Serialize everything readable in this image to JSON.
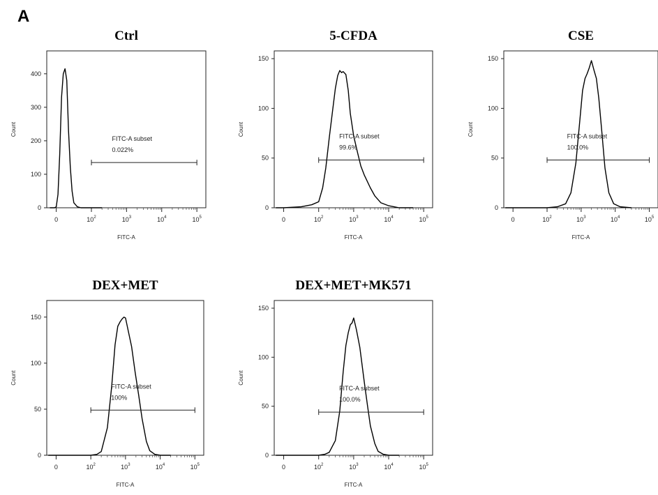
{
  "figure": {
    "panel_letter": "A"
  },
  "chart_data": [
    {
      "type": "histogram",
      "title": "Ctrl",
      "xlabel": "FITC-A",
      "ylabel": "Count",
      "xscale": "biexponential",
      "x_ticks": [
        {
          "v": 0,
          "base": "0",
          "exp": ""
        },
        {
          "v": 100,
          "base": "10",
          "exp": "2"
        },
        {
          "v": 1000,
          "base": "10",
          "exp": "3"
        },
        {
          "v": 10000,
          "base": "10",
          "exp": "4"
        },
        {
          "v": 100000,
          "base": "10",
          "exp": "5"
        }
      ],
      "ylim": [
        0,
        460
      ],
      "y_ticks": [
        0,
        100,
        200,
        300,
        400
      ],
      "gate": {
        "name": "FITC-A subset",
        "percent": "0.022%",
        "x_range": [
          100,
          100000
        ],
        "y": 135
      },
      "x": [
        -40,
        -10,
        0,
        5,
        10,
        15,
        20,
        25,
        30,
        35,
        40,
        45,
        50,
        60,
        70,
        80,
        100,
        200
      ],
      "y": [
        0,
        0,
        3,
        40,
        160,
        330,
        400,
        415,
        380,
        230,
        120,
        50,
        15,
        3,
        0,
        0,
        0,
        0
      ]
    },
    {
      "type": "histogram",
      "title": "5-CFDA",
      "xlabel": "FITC-A",
      "ylabel": "Count",
      "xscale": "biexponential",
      "x_ticks": [
        {
          "v": 0,
          "base": "0",
          "exp": ""
        },
        {
          "v": 100,
          "base": "10",
          "exp": "2"
        },
        {
          "v": 1000,
          "base": "10",
          "exp": "3"
        },
        {
          "v": 10000,
          "base": "10",
          "exp": "4"
        },
        {
          "v": 100000,
          "base": "10",
          "exp": "5"
        }
      ],
      "ylim": [
        0,
        155
      ],
      "y_ticks": [
        0,
        50,
        100,
        150
      ],
      "gate": {
        "name": "FITC-A subset",
        "percent": "99.6%",
        "x_range": [
          100,
          100000
        ],
        "y": 48
      },
      "x": [
        -50,
        0,
        50,
        80,
        100,
        130,
        160,
        200,
        250,
        300,
        350,
        400,
        450,
        500,
        600,
        700,
        800,
        1000,
        1300,
        1600,
        2000,
        3000,
        4000,
        6000,
        10000,
        20000,
        50000
      ],
      "y": [
        0,
        0,
        1,
        3,
        6,
        20,
        40,
        70,
        98,
        120,
        133,
        138,
        136,
        137,
        134,
        118,
        95,
        72,
        55,
        42,
        33,
        20,
        12,
        5,
        2,
        0,
        0
      ]
    },
    {
      "type": "histogram",
      "title": "CSE",
      "xlabel": "FITC-A",
      "ylabel": "Count",
      "xscale": "biexponential",
      "x_ticks": [
        {
          "v": 0,
          "base": "0",
          "exp": ""
        },
        {
          "v": 100,
          "base": "10",
          "exp": "2"
        },
        {
          "v": 1000,
          "base": "10",
          "exp": "3"
        },
        {
          "v": 10000,
          "base": "10",
          "exp": "4"
        },
        {
          "v": 100000,
          "base": "10",
          "exp": "5"
        }
      ],
      "ylim": [
        0,
        155
      ],
      "y_ticks": [
        0,
        50,
        100,
        150
      ],
      "gate": {
        "name": "FITC-A subset",
        "percent": "100.0%",
        "x_range": [
          100,
          100000
        ],
        "y": 48
      },
      "x": [
        -50,
        0,
        100,
        200,
        350,
        500,
        700,
        900,
        1100,
        1300,
        1500,
        1700,
        2000,
        2400,
        2800,
        3300,
        4000,
        5000,
        6500,
        9000,
        14000,
        30000
      ],
      "y": [
        0,
        0,
        0,
        1,
        4,
        15,
        45,
        85,
        118,
        130,
        135,
        140,
        148,
        138,
        130,
        110,
        78,
        40,
        15,
        4,
        1,
        0
      ]
    },
    {
      "type": "histogram",
      "title": "DEX+MET",
      "xlabel": "FITC-A",
      "ylabel": "Count",
      "xscale": "biexponential",
      "x_ticks": [
        {
          "v": 0,
          "base": "0",
          "exp": ""
        },
        {
          "v": 100,
          "base": "10",
          "exp": "2"
        },
        {
          "v": 1000,
          "base": "10",
          "exp": "3"
        },
        {
          "v": 10000,
          "base": "10",
          "exp": "4"
        },
        {
          "v": 100000,
          "base": "10",
          "exp": "5"
        }
      ],
      "ylim": [
        0,
        165
      ],
      "y_ticks": [
        0,
        50,
        100,
        150
      ],
      "gate": {
        "name": "FITC-A subset",
        "percent": "100%",
        "x_range": [
          100,
          100000
        ],
        "y": 49
      },
      "x": [
        -50,
        0,
        100,
        150,
        200,
        300,
        400,
        500,
        600,
        700,
        800,
        900,
        1000,
        1200,
        1500,
        1900,
        2400,
        3000,
        4000,
        5000,
        7000,
        10000,
        20000
      ],
      "y": [
        0,
        0,
        0,
        1,
        4,
        30,
        75,
        120,
        140,
        145,
        148,
        150,
        149,
        135,
        118,
        90,
        65,
        40,
        15,
        5,
        1,
        0,
        0
      ]
    },
    {
      "type": "histogram",
      "title": "DEX+MET+MK571",
      "xlabel": "FITC-A",
      "ylabel": "Count",
      "xscale": "biexponential",
      "x_ticks": [
        {
          "v": 0,
          "base": "0",
          "exp": ""
        },
        {
          "v": 100,
          "base": "10",
          "exp": "2"
        },
        {
          "v": 1000,
          "base": "10",
          "exp": "3"
        },
        {
          "v": 10000,
          "base": "10",
          "exp": "4"
        },
        {
          "v": 100000,
          "base": "10",
          "exp": "5"
        }
      ],
      "ylim": [
        0,
        155
      ],
      "y_ticks": [
        0,
        50,
        100,
        150
      ],
      "gate": {
        "name": "FITC-A subset",
        "percent": "100.0%",
        "x_range": [
          100,
          100000
        ],
        "y": 44
      },
      "x": [
        -50,
        0,
        100,
        150,
        200,
        300,
        400,
        500,
        600,
        700,
        800,
        900,
        1000,
        1200,
        1500,
        2000,
        2500,
        3000,
        4000,
        5000,
        7000,
        10000,
        20000
      ],
      "y": [
        0,
        0,
        0,
        1,
        3,
        15,
        45,
        85,
        112,
        125,
        133,
        135,
        140,
        128,
        110,
        75,
        50,
        30,
        12,
        4,
        1,
        0,
        0
      ]
    }
  ]
}
